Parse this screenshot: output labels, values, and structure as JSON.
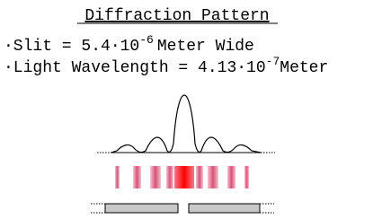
{
  "title": "Diffraction Pattern",
  "lines": [
    {
      "text": "·Slit = 5.4·10",
      "exponent": "-6",
      "tail": "Meter Wide"
    },
    {
      "text": "·Light Wavelength = 4.13·10",
      "exponent": "-7",
      "tail": "Meter"
    }
  ]
}
